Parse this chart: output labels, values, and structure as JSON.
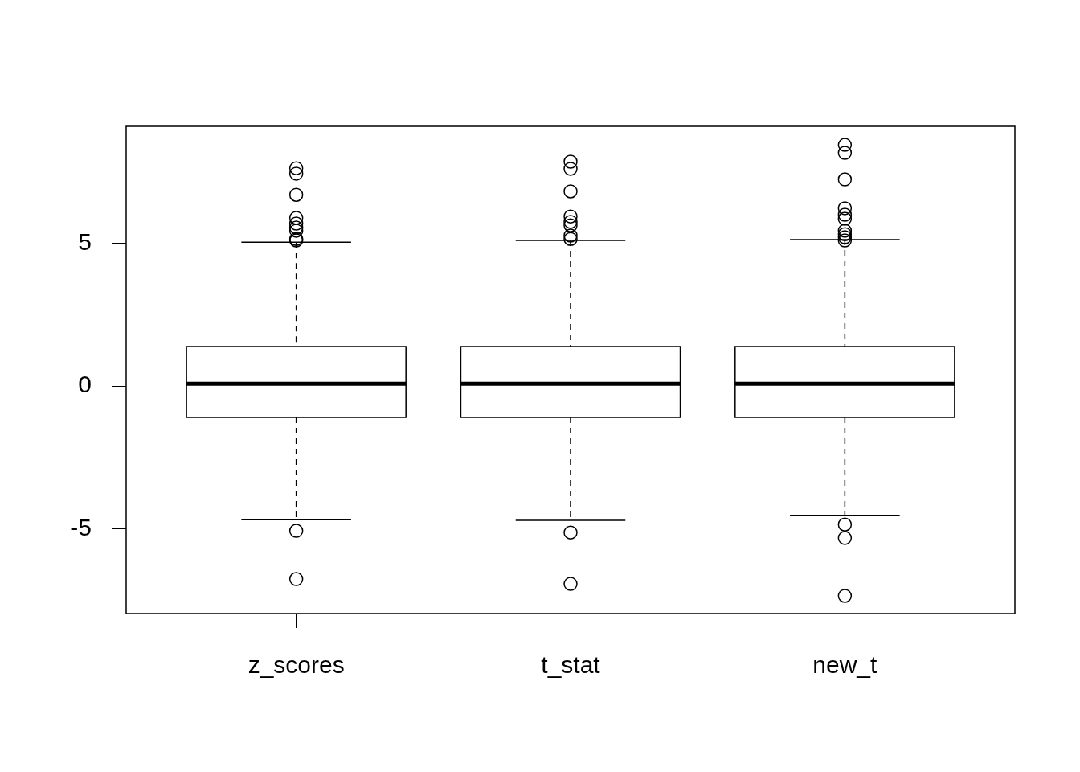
{
  "chart_data": {
    "type": "box",
    "categories": [
      "z_scores",
      "t_stat",
      "new_t"
    ],
    "boxes": [
      {
        "low": -4.68,
        "q1": -1.1,
        "median": 0.08,
        "q3": 1.38,
        "high": 5.04,
        "outliers": [
          7.63,
          7.44,
          6.7,
          5.89,
          5.69,
          5.55,
          5.44,
          5.15,
          5.1,
          -5.07,
          -6.76
        ]
      },
      {
        "low": -4.7,
        "q1": -1.1,
        "median": 0.08,
        "q3": 1.38,
        "high": 5.1,
        "outliers": [
          7.86,
          7.61,
          6.82,
          5.94,
          5.75,
          5.63,
          5.27,
          5.15,
          -5.13,
          -6.93
        ]
      },
      {
        "low": -4.54,
        "q1": -1.1,
        "median": 0.08,
        "q3": 1.38,
        "high": 5.13,
        "outliers": [
          8.45,
          8.17,
          7.24,
          6.23,
          6.0,
          5.86,
          5.44,
          5.32,
          5.21,
          5.1,
          -4.85,
          -5.32,
          -7.35
        ]
      }
    ],
    "color": "#000000",
    "ylim": [
      -7.97,
      9.1
    ],
    "yticks": [
      -5,
      0,
      5
    ],
    "grid": false,
    "legend": false
  }
}
